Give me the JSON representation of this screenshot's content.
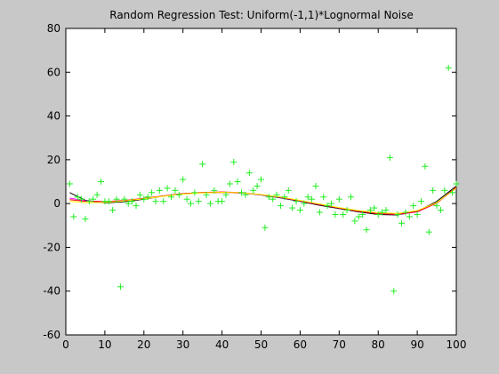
{
  "chart_data": {
    "type": "scatter",
    "title": "Random Regression Test: Uniform(-1,1)*Lognormal Noise",
    "xlabel": "",
    "ylabel": "",
    "xlim": [
      0,
      100
    ],
    "ylim": [
      -60,
      80
    ],
    "x_ticks": [
      0,
      10,
      20,
      30,
      40,
      50,
      60,
      70,
      80,
      90,
      100
    ],
    "y_ticks": [
      -60,
      -40,
      -20,
      0,
      20,
      40,
      60,
      80
    ],
    "grid": false,
    "legend": "none",
    "colors": {
      "background": "#c8c8c8",
      "axes": "#ffffff",
      "points": "#22ee22",
      "curves": [
        "#000000",
        "#ff00ff",
        "#ff0000",
        "#ffff00"
      ]
    },
    "series": [
      {
        "marker": "plus",
        "color": "#22ee22",
        "x": [
          1,
          2,
          3,
          4,
          5,
          6,
          7,
          8,
          9,
          10,
          11,
          12,
          13,
          14,
          15,
          16,
          17,
          18,
          19,
          20,
          21,
          22,
          23,
          24,
          25,
          26,
          27,
          28,
          29,
          30,
          31,
          32,
          33,
          34,
          35,
          36,
          37,
          38,
          39,
          40,
          41,
          42,
          43,
          44,
          45,
          46,
          47,
          48,
          49,
          50,
          51,
          52,
          53,
          54,
          55,
          56,
          57,
          58,
          59,
          60,
          61,
          62,
          63,
          64,
          65,
          66,
          67,
          68,
          69,
          70,
          71,
          72,
          73,
          74,
          75,
          76,
          77,
          78,
          79,
          80,
          81,
          82,
          83,
          84,
          85,
          86,
          87,
          88,
          89,
          90,
          91,
          92,
          93,
          94,
          95,
          96,
          97,
          98,
          99,
          100
        ],
        "y": [
          9,
          -6,
          3,
          2,
          -7,
          1,
          2,
          4,
          10,
          1,
          1,
          -3,
          2,
          -38,
          2,
          0,
          1,
          -1,
          4,
          2,
          3,
          5,
          1,
          6,
          1,
          7,
          3,
          6,
          4,
          11,
          2,
          0,
          5,
          1,
          18,
          4,
          0,
          6,
          1,
          1,
          4,
          9,
          19,
          10,
          5,
          4,
          14,
          6,
          8,
          11,
          -11,
          3,
          2,
          4,
          -1,
          3,
          6,
          -2,
          1,
          -3,
          0,
          3,
          2,
          8,
          -4,
          3,
          -1,
          0,
          -5,
          2,
          -5,
          -3,
          3,
          -8,
          -6,
          -5,
          -12,
          -3,
          -2,
          -5,
          -4,
          -3,
          21,
          -40,
          -5,
          -9,
          -4,
          -6,
          -1,
          -5,
          1,
          17,
          -13,
          6,
          -1,
          -3,
          6,
          62,
          5,
          9
        ]
      },
      {
        "name": "",
        "type": "line",
        "color": "#000000",
        "x": [
          1,
          5,
          10,
          15,
          20,
          25,
          30,
          35,
          40,
          45,
          50,
          55,
          60,
          65,
          70,
          75,
          80,
          85,
          90,
          95,
          100
        ],
        "y": [
          5.0,
          1.5,
          0.3,
          0.8,
          2.0,
          3.4,
          4.5,
          5.0,
          5.1,
          4.8,
          3.9,
          2.6,
          1.0,
          -0.8,
          -2.3,
          -3.8,
          -5.0,
          -5.2,
          -3.5,
          1.0,
          8.0
        ]
      },
      {
        "name": "",
        "type": "line",
        "color": "#ff00ff",
        "x": [
          1,
          5,
          10,
          15,
          20,
          25,
          30,
          35,
          40,
          45,
          50,
          55,
          60,
          65,
          70,
          75,
          80,
          85,
          90,
          95,
          100
        ],
        "y": [
          2.5,
          1.2,
          0.8,
          1.2,
          2.2,
          3.4,
          4.4,
          5.0,
          5.1,
          4.8,
          4.0,
          2.8,
          1.2,
          -0.5,
          -2.0,
          -3.5,
          -4.6,
          -5.0,
          -3.8,
          0.3,
          7.0
        ]
      },
      {
        "name": "",
        "type": "line",
        "color": "#ff0000",
        "x": [
          1,
          5,
          10,
          15,
          20,
          25,
          30,
          35,
          40,
          45,
          50,
          55,
          60,
          65,
          70,
          75,
          80,
          85,
          90,
          95,
          100
        ],
        "y": [
          1.8,
          1.0,
          0.9,
          1.4,
          2.4,
          3.5,
          4.5,
          5.1,
          5.3,
          5.0,
          4.1,
          2.9,
          1.3,
          -0.4,
          -2.0,
          -3.5,
          -4.6,
          -4.9,
          -3.7,
          0.2,
          7.5
        ]
      },
      {
        "name": "",
        "type": "line",
        "color": "#ffff00",
        "x": [
          1,
          5,
          10,
          15,
          20,
          25,
          30,
          35,
          40,
          45,
          50,
          55,
          60,
          65,
          70,
          75,
          80,
          85,
          90,
          95,
          100
        ],
        "y": [
          1.0,
          0.4,
          0.5,
          1.2,
          2.2,
          3.3,
          4.3,
          4.9,
          5.1,
          4.9,
          4.1,
          3.0,
          1.5,
          -0.2,
          -1.8,
          -3.2,
          -4.2,
          -4.5,
          -3.2,
          0.5,
          7.0
        ]
      }
    ]
  }
}
